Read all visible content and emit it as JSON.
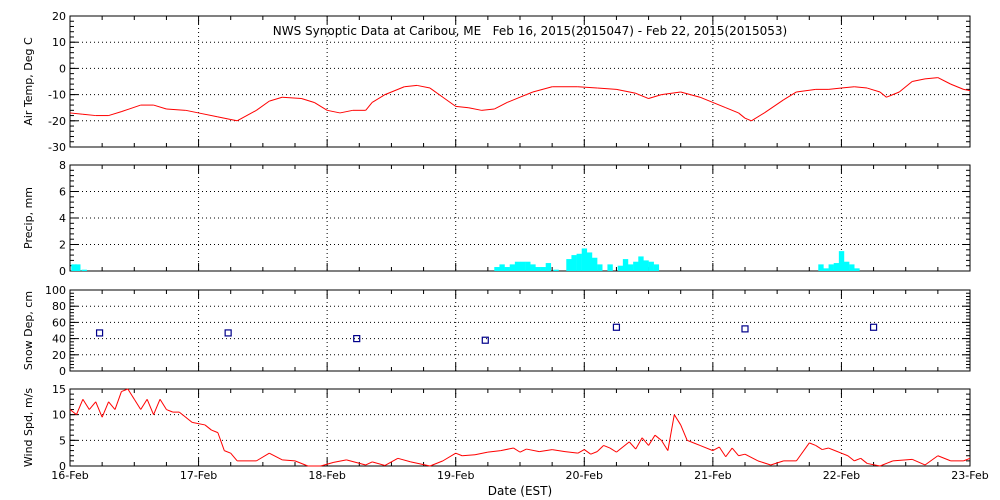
{
  "chart_data": {
    "type": "line",
    "title": "NWS Synoptic Data at Caribou, ME   Feb 16, 2015(2015047) - Feb 22, 2015(2015053)",
    "xlabel": "Date (EST)",
    "x_ticks": [
      "16-Feb",
      "17-Feb",
      "18-Feb",
      "19-Feb",
      "20-Feb",
      "21-Feb",
      "22-Feb",
      "23-Feb"
    ],
    "x_range_days": [
      0,
      7
    ],
    "grid": true,
    "panels": [
      {
        "id": "air-temp",
        "type": "line",
        "ylabel": "Air Temp, Deg C",
        "ylim": [
          -30,
          20
        ],
        "yticks": [
          -30,
          -20,
          -10,
          0,
          10,
          20
        ],
        "color": "#ff0000",
        "points": [
          [
            0.0,
            -17
          ],
          [
            0.1,
            -17.5
          ],
          [
            0.2,
            -18
          ],
          [
            0.3,
            -18
          ],
          [
            0.4,
            -16.5
          ],
          [
            0.55,
            -14
          ],
          [
            0.65,
            -14
          ],
          [
            0.75,
            -15.5
          ],
          [
            0.9,
            -16
          ],
          [
            1.0,
            -17
          ],
          [
            1.15,
            -18.5
          ],
          [
            1.25,
            -19.5
          ],
          [
            1.3,
            -20
          ],
          [
            1.45,
            -16
          ],
          [
            1.55,
            -12.5
          ],
          [
            1.65,
            -11
          ],
          [
            1.8,
            -11.5
          ],
          [
            1.9,
            -13
          ],
          [
            2.0,
            -16
          ],
          [
            2.1,
            -17
          ],
          [
            2.2,
            -16
          ],
          [
            2.3,
            -16
          ],
          [
            2.35,
            -13
          ],
          [
            2.45,
            -10
          ],
          [
            2.6,
            -7
          ],
          [
            2.7,
            -6.5
          ],
          [
            2.8,
            -7.5
          ],
          [
            2.9,
            -11
          ],
          [
            3.0,
            -14.5
          ],
          [
            3.1,
            -15
          ],
          [
            3.2,
            -16
          ],
          [
            3.3,
            -15.5
          ],
          [
            3.4,
            -13
          ],
          [
            3.5,
            -11
          ],
          [
            3.6,
            -9
          ],
          [
            3.75,
            -7
          ],
          [
            3.85,
            -7
          ],
          [
            3.95,
            -7
          ],
          [
            4.1,
            -7.5
          ],
          [
            4.25,
            -8
          ],
          [
            4.4,
            -9.5
          ],
          [
            4.5,
            -11.5
          ],
          [
            4.6,
            -10
          ],
          [
            4.75,
            -9
          ],
          [
            4.9,
            -11
          ],
          [
            5.0,
            -13
          ],
          [
            5.1,
            -15
          ],
          [
            5.2,
            -17
          ],
          [
            5.25,
            -19
          ],
          [
            5.3,
            -20
          ],
          [
            5.4,
            -17
          ],
          [
            5.55,
            -12
          ],
          [
            5.65,
            -9
          ],
          [
            5.8,
            -8
          ],
          [
            5.9,
            -8
          ],
          [
            6.0,
            -7.5
          ],
          [
            6.1,
            -7
          ],
          [
            6.2,
            -7.5
          ],
          [
            6.3,
            -9
          ],
          [
            6.35,
            -11
          ],
          [
            6.45,
            -9
          ],
          [
            6.55,
            -5
          ],
          [
            6.65,
            -4
          ],
          [
            6.75,
            -3.5
          ],
          [
            6.85,
            -6
          ],
          [
            6.95,
            -8
          ],
          [
            7.0,
            -8.5
          ]
        ]
      },
      {
        "id": "precip",
        "type": "bar",
        "ylabel": "Precip, mm",
        "ylim": [
          0,
          8
        ],
        "yticks": [
          0,
          2,
          4,
          6,
          8
        ],
        "color": "#00ffff",
        "bars": [
          [
            0.01,
            0.5
          ],
          [
            0.04,
            0.5
          ],
          [
            0.09,
            0.1
          ],
          [
            3.3,
            0.3
          ],
          [
            3.34,
            0.5
          ],
          [
            3.38,
            0.3
          ],
          [
            3.42,
            0.5
          ],
          [
            3.46,
            0.7
          ],
          [
            3.5,
            0.7
          ],
          [
            3.54,
            0.7
          ],
          [
            3.58,
            0.5
          ],
          [
            3.62,
            0.3
          ],
          [
            3.66,
            0.3
          ],
          [
            3.7,
            0.6
          ],
          [
            3.76,
            0.1
          ],
          [
            3.86,
            0.9
          ],
          [
            3.9,
            1.2
          ],
          [
            3.94,
            1.3
          ],
          [
            3.98,
            1.7
          ],
          [
            4.02,
            1.4
          ],
          [
            4.06,
            1.0
          ],
          [
            4.1,
            0.5
          ],
          [
            4.18,
            0.5
          ],
          [
            4.26,
            0.4
          ],
          [
            4.3,
            0.9
          ],
          [
            4.34,
            0.5
          ],
          [
            4.38,
            0.7
          ],
          [
            4.42,
            1.1
          ],
          [
            4.46,
            0.8
          ],
          [
            4.5,
            0.7
          ],
          [
            4.54,
            0.5
          ],
          [
            5.82,
            0.5
          ],
          [
            5.86,
            0.2
          ],
          [
            5.9,
            0.5
          ],
          [
            5.94,
            0.6
          ],
          [
            5.98,
            1.5
          ],
          [
            6.02,
            0.7
          ],
          [
            6.06,
            0.5
          ],
          [
            6.1,
            0.2
          ]
        ]
      },
      {
        "id": "snow-depth",
        "type": "scatter",
        "ylabel": "Snow Dep, cm",
        "ylim": [
          0,
          100
        ],
        "yticks": [
          0,
          20,
          40,
          60,
          80,
          100
        ],
        "color": "#00008b",
        "points": [
          [
            0.23,
            47
          ],
          [
            1.23,
            47
          ],
          [
            2.23,
            40
          ],
          [
            3.23,
            38
          ],
          [
            4.25,
            54
          ],
          [
            5.25,
            52
          ],
          [
            6.25,
            54
          ]
        ]
      },
      {
        "id": "wind-speed",
        "type": "line",
        "ylabel": "Wind Spd, m/s",
        "ylim": [
          0,
          15
        ],
        "yticks": [
          0,
          5,
          10,
          15
        ],
        "color": "#ff0000",
        "points": [
          [
            0.0,
            11
          ],
          [
            0.05,
            10
          ],
          [
            0.1,
            13
          ],
          [
            0.15,
            11
          ],
          [
            0.2,
            12.5
          ],
          [
            0.25,
            9.5
          ],
          [
            0.3,
            12.5
          ],
          [
            0.35,
            11
          ],
          [
            0.4,
            14.5
          ],
          [
            0.45,
            15
          ],
          [
            0.5,
            13
          ],
          [
            0.55,
            11
          ],
          [
            0.6,
            13
          ],
          [
            0.65,
            10
          ],
          [
            0.7,
            13
          ],
          [
            0.75,
            11
          ],
          [
            0.8,
            10.5
          ],
          [
            0.85,
            10.5
          ],
          [
            0.95,
            8.5
          ],
          [
            1.05,
            8
          ],
          [
            1.1,
            7
          ],
          [
            1.15,
            6.5
          ],
          [
            1.2,
            3
          ],
          [
            1.25,
            2.5
          ],
          [
            1.3,
            1
          ],
          [
            1.45,
            1
          ],
          [
            1.55,
            2.5
          ],
          [
            1.65,
            1.2
          ],
          [
            1.75,
            1
          ],
          [
            1.85,
            0
          ],
          [
            1.95,
            0
          ],
          [
            2.05,
            0.7
          ],
          [
            2.15,
            1.2
          ],
          [
            2.3,
            0.2
          ],
          [
            2.35,
            0.8
          ],
          [
            2.45,
            0.1
          ],
          [
            2.55,
            1.5
          ],
          [
            2.65,
            0.8
          ],
          [
            2.8,
            0
          ],
          [
            2.9,
            1
          ],
          [
            3.0,
            2.5
          ],
          [
            3.05,
            2
          ],
          [
            3.15,
            2.2
          ],
          [
            3.25,
            2.7
          ],
          [
            3.35,
            3
          ],
          [
            3.45,
            3.5
          ],
          [
            3.5,
            2.7
          ],
          [
            3.55,
            3.3
          ],
          [
            3.65,
            2.8
          ],
          [
            3.75,
            3.2
          ],
          [
            3.85,
            2.8
          ],
          [
            3.95,
            2.5
          ],
          [
            4.0,
            3.2
          ],
          [
            4.05,
            2.3
          ],
          [
            4.1,
            2.8
          ],
          [
            4.15,
            4
          ],
          [
            4.2,
            3.5
          ],
          [
            4.25,
            2.7
          ],
          [
            4.35,
            4.7
          ],
          [
            4.4,
            3.3
          ],
          [
            4.45,
            5.5
          ],
          [
            4.5,
            4
          ],
          [
            4.55,
            6
          ],
          [
            4.6,
            5
          ],
          [
            4.65,
            3
          ],
          [
            4.7,
            10
          ],
          [
            4.75,
            8
          ],
          [
            4.8,
            5
          ],
          [
            4.85,
            4.5
          ],
          [
            4.9,
            4
          ],
          [
            5.0,
            3
          ],
          [
            5.05,
            3.7
          ],
          [
            5.1,
            1.8
          ],
          [
            5.15,
            3.5
          ],
          [
            5.2,
            2
          ],
          [
            5.25,
            2.3
          ],
          [
            5.35,
            1
          ],
          [
            5.45,
            0.2
          ],
          [
            5.55,
            1
          ],
          [
            5.65,
            1
          ],
          [
            5.75,
            4.5
          ],
          [
            5.8,
            4
          ],
          [
            5.85,
            3.2
          ],
          [
            5.9,
            3.5
          ],
          [
            5.95,
            3
          ],
          [
            6.0,
            2.5
          ],
          [
            6.05,
            2
          ],
          [
            6.1,
            1
          ],
          [
            6.15,
            1.5
          ],
          [
            6.2,
            0.5
          ],
          [
            6.3,
            0
          ],
          [
            6.4,
            1
          ],
          [
            6.55,
            1.3
          ],
          [
            6.65,
            0.2
          ],
          [
            6.75,
            2
          ],
          [
            6.85,
            1
          ],
          [
            6.95,
            1
          ],
          [
            7.0,
            1.5
          ]
        ]
      }
    ]
  }
}
